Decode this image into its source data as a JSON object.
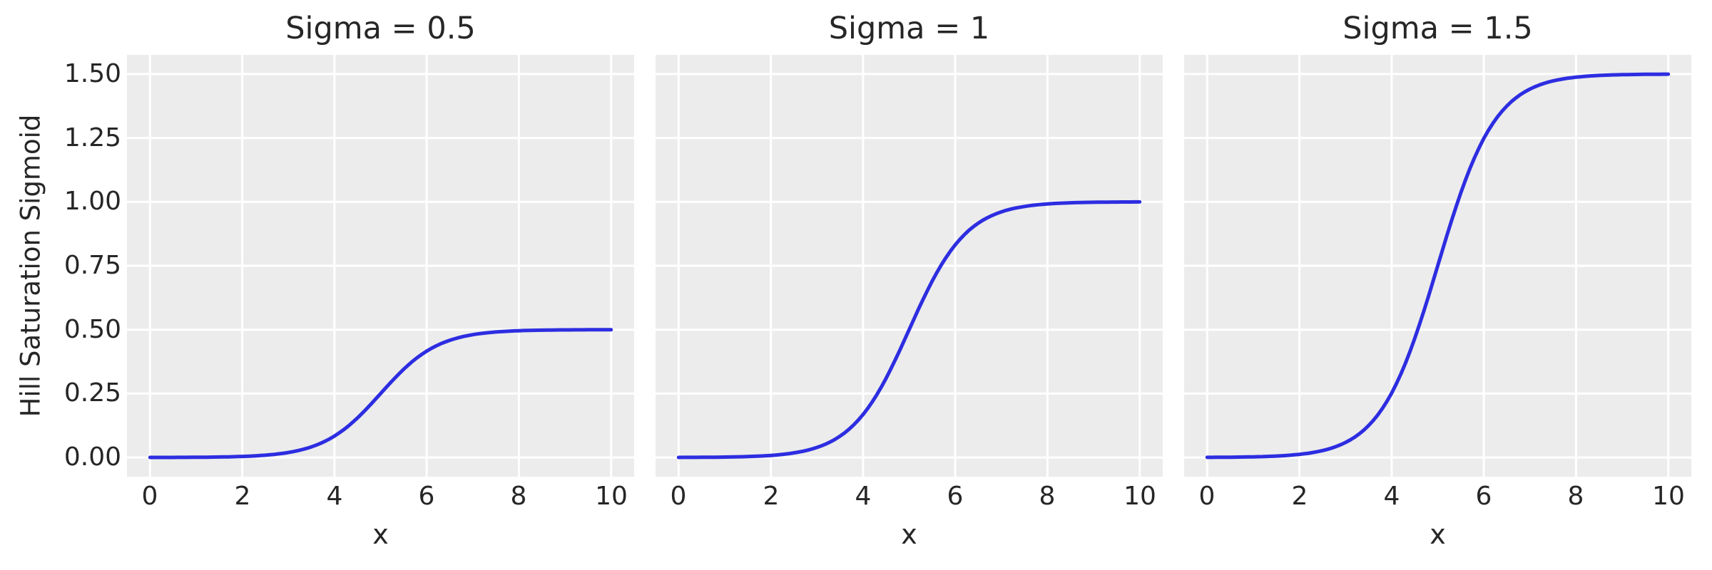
{
  "figure": {
    "background": "#ffffff",
    "axes_background": "#ececec",
    "grid_color": "#ffffff",
    "text_color": "#262626",
    "line_color": "#2d2de1"
  },
  "chart_data": {
    "type": "line",
    "layout": "1 row x 3 columns, shared y axis",
    "xlabel": "x",
    "ylabel": "Hill Saturation Sigmoid",
    "x_ticks": [
      "0",
      "2",
      "4",
      "6",
      "8",
      "10"
    ],
    "y_ticks": [
      "0.00",
      "0.25",
      "0.50",
      "0.75",
      "1.00",
      "1.25",
      "1.50"
    ],
    "x_tick_values": [
      0,
      2,
      4,
      6,
      8,
      10
    ],
    "y_tick_values": [
      0,
      0.25,
      0.5,
      0.75,
      1.0,
      1.25,
      1.5
    ],
    "xlim": [
      -0.5,
      10.5
    ],
    "ylim": [
      -0.075,
      1.575
    ],
    "grid": true,
    "legend": false,
    "subplots": [
      {
        "title": "Sigma = 0.5",
        "sigma": 0.5,
        "curve_params": {
          "amplitude": 0.5,
          "midpoint": 5,
          "steepness": 1.6
        },
        "x": [
          0,
          0.5,
          1,
          1.5,
          2,
          2.5,
          3,
          3.5,
          4,
          4.5,
          5,
          5.5,
          6,
          6.5,
          7,
          7.5,
          8,
          8.5,
          9,
          9.5,
          10
        ],
        "y": [
          0.0002,
          0.0004,
          0.0008,
          0.0018,
          0.0041,
          0.009,
          0.0196,
          0.0416,
          0.084,
          0.155,
          0.25,
          0.345,
          0.416,
          0.4584,
          0.4804,
          0.491,
          0.4959,
          0.4982,
          0.4992,
          0.4996,
          0.4998
        ]
      },
      {
        "title": "Sigma = 1",
        "sigma": 1.0,
        "curve_params": {
          "amplitude": 1.0,
          "midpoint": 5,
          "steepness": 1.6
        },
        "x": [
          0,
          0.5,
          1,
          1.5,
          2,
          2.5,
          3,
          3.5,
          4,
          4.5,
          5,
          5.5,
          6,
          6.5,
          7,
          7.5,
          8,
          8.5,
          9,
          9.5,
          10
        ],
        "y": [
          0.0003,
          0.0007,
          0.0017,
          0.0037,
          0.0082,
          0.018,
          0.0392,
          0.0832,
          0.168,
          0.31,
          0.5,
          0.69,
          0.832,
          0.9168,
          0.9608,
          0.982,
          0.9918,
          0.9963,
          0.9983,
          0.9993,
          0.9997
        ]
      },
      {
        "title": "Sigma = 1.5",
        "sigma": 1.5,
        "curve_params": {
          "amplitude": 1.5,
          "midpoint": 5,
          "steepness": 1.6
        },
        "x": [
          0,
          0.5,
          1,
          1.5,
          2,
          2.5,
          3,
          3.5,
          4,
          4.5,
          5,
          5.5,
          6,
          6.5,
          7,
          7.5,
          8,
          8.5,
          9,
          9.5,
          10
        ],
        "y": [
          0.0005,
          0.0011,
          0.0025,
          0.0055,
          0.0122,
          0.027,
          0.0587,
          0.1248,
          0.252,
          0.465,
          0.75,
          1.035,
          1.248,
          1.3752,
          1.4413,
          1.473,
          1.4878,
          1.4945,
          1.4975,
          1.4989,
          1.4995
        ]
      }
    ]
  }
}
